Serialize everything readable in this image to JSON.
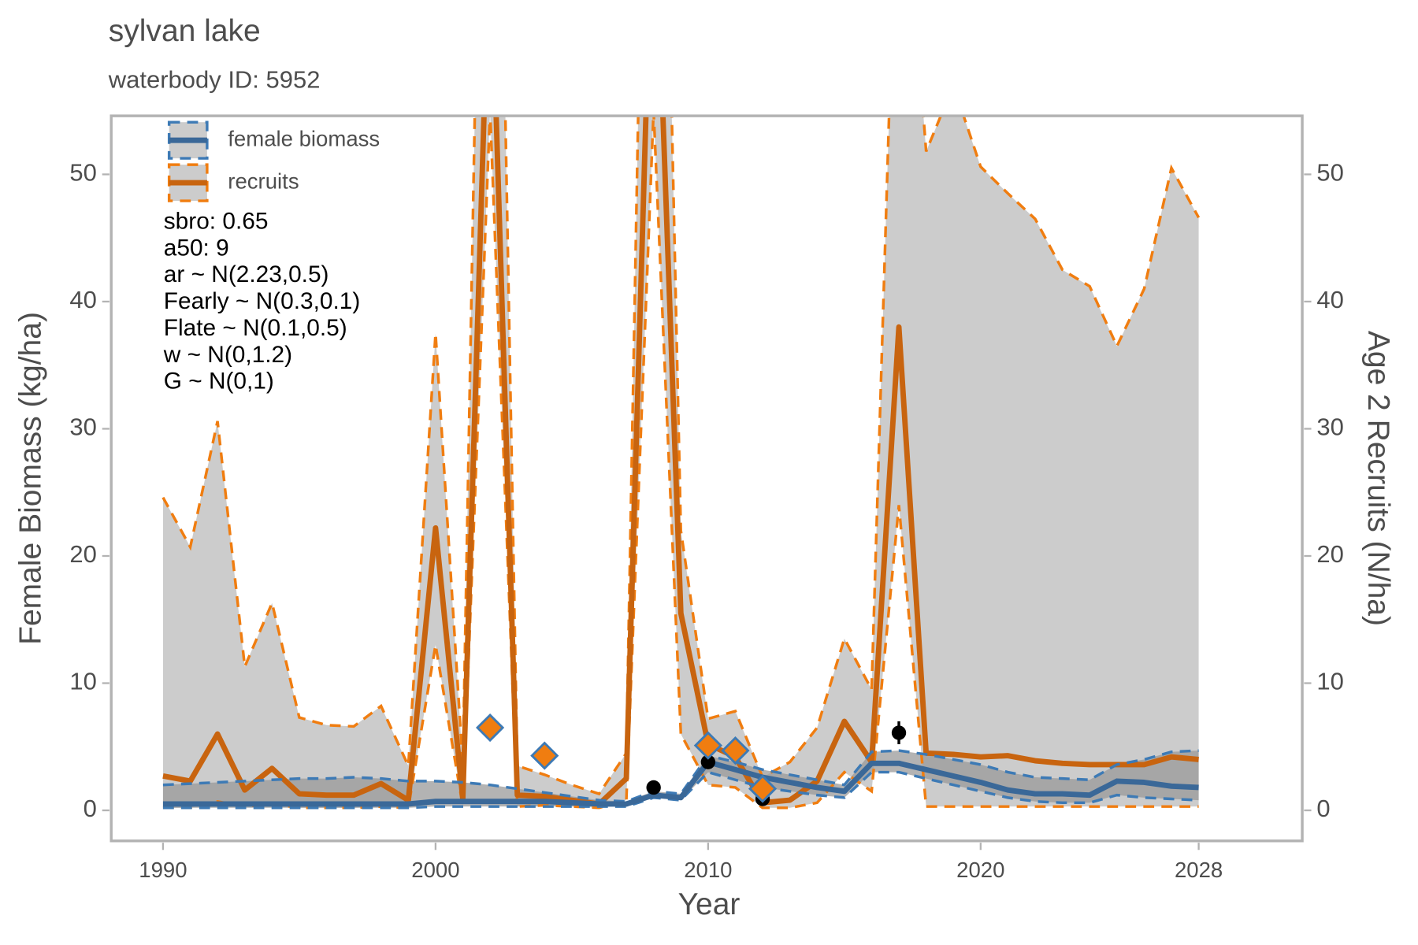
{
  "chart_data": {
    "type": "line",
    "title": "sylvan lake",
    "subtitle": "waterbody ID: 5952",
    "xlabel": "Year",
    "ylabel": "Female Biomass (kg/ha)",
    "y2label": "Age 2 Recruits (N/ha)",
    "xlim": [
      1988.1,
      2031.8
    ],
    "xticks": [
      1990,
      2000,
      2010,
      2020,
      2028
    ],
    "ylim": [
      -2.4,
      54.6
    ],
    "yticks": [
      0,
      10,
      20,
      30,
      40,
      50
    ],
    "y2lim": [
      -2.4,
      54.6
    ],
    "y2ticks": [
      0,
      10,
      20,
      30,
      40,
      50
    ],
    "legend": "top-left",
    "annotations": [
      "sbro: 0.65",
      "a50: 9",
      "ar ~ N(2.23,0.5)",
      "Fearly ~ N(0.3,0.1)",
      "Flate ~ N(0.1,0.5)",
      "w ~ N(0,1.2)",
      "G ~ N(0,1)"
    ],
    "x": [
      1990,
      1991,
      1992,
      1993,
      1994,
      1995,
      1996,
      1997,
      1998,
      1999,
      2000,
      2001,
      2002,
      2003,
      2004,
      2005,
      2006,
      2007,
      2008,
      2009,
      2010,
      2011,
      2012,
      2013,
      2014,
      2015,
      2016,
      2017,
      2018,
      2019,
      2020,
      2021,
      2022,
      2023,
      2024,
      2025,
      2026,
      2027,
      2028
    ],
    "series": [
      {
        "name": "female biomass",
        "color": "#3a6898",
        "band_color": "#9a9a9a",
        "dash_color": "#3d7ab5",
        "axis": "y",
        "values": [
          0.5,
          0.5,
          0.5,
          0.5,
          0.5,
          0.5,
          0.5,
          0.5,
          0.5,
          0.5,
          0.7,
          0.7,
          0.7,
          0.7,
          0.7,
          0.6,
          0.5,
          0.5,
          1.2,
          1.0,
          3.8,
          3.2,
          2.6,
          2.2,
          1.8,
          1.5,
          3.7,
          3.7,
          3.2,
          2.7,
          2.2,
          1.6,
          1.3,
          1.3,
          1.2,
          2.3,
          2.2,
          1.9,
          1.8
        ],
        "lower": [
          0.2,
          0.2,
          0.2,
          0.2,
          0.2,
          0.2,
          0.2,
          0.2,
          0.2,
          0.2,
          0.3,
          0.3,
          0.3,
          0.3,
          0.3,
          0.3,
          0.3,
          0.3,
          1.0,
          0.8,
          3.0,
          2.4,
          1.8,
          1.5,
          1.2,
          1.0,
          3.0,
          3.0,
          2.5,
          2.0,
          1.5,
          1.0,
          0.7,
          0.6,
          0.6,
          1.2,
          1.0,
          0.9,
          0.8
        ],
        "upper": [
          2.0,
          2.1,
          2.2,
          2.3,
          2.4,
          2.5,
          2.5,
          2.6,
          2.5,
          2.3,
          2.3,
          2.2,
          2.0,
          1.7,
          1.4,
          1.1,
          0.8,
          0.7,
          1.5,
          1.3,
          4.3,
          3.8,
          3.2,
          2.8,
          2.4,
          2.0,
          4.6,
          4.7,
          4.4,
          4.0,
          3.6,
          3.0,
          2.6,
          2.5,
          2.4,
          3.6,
          4.0,
          4.6,
          4.7
        ]
      },
      {
        "name": "recruits",
        "color": "#c8640f",
        "band_color": "#cccccc",
        "dash_color": "#f07d10",
        "axis": "y2",
        "values": [
          2.7,
          2.3,
          6.0,
          1.6,
          3.3,
          1.3,
          1.2,
          1.2,
          2.1,
          0.8,
          22.2,
          0.9,
          70,
          1.2,
          1.1,
          0.8,
          0.5,
          2.5,
          75,
          15.5,
          5.2,
          4.2,
          0.6,
          0.8,
          2.3,
          7.0,
          3.8,
          38.0,
          4.5,
          4.4,
          4.2,
          4.3,
          3.9,
          3.7,
          3.6,
          3.6,
          3.6,
          4.2,
          4.0
        ],
        "lower": [
          0.2,
          0.2,
          0.7,
          0.3,
          0.5,
          0.2,
          0.2,
          0.2,
          0.3,
          0.2,
          13,
          0.3,
          55,
          0.3,
          0.4,
          0.3,
          0.2,
          0.8,
          55,
          6,
          2,
          1.8,
          0.2,
          0.2,
          0.6,
          3,
          1.5,
          24,
          0.3,
          0.3,
          0.3,
          0.3,
          0.3,
          0.3,
          0.3,
          0.3,
          0.3,
          0.3,
          0.3
        ],
        "upper": [
          24.6,
          20.7,
          30.6,
          11.3,
          16.3,
          7.3,
          6.7,
          6.6,
          8.2,
          3.5,
          37.5,
          3.5,
          120,
          3.5,
          2.8,
          2.0,
          1.3,
          4.5,
          120,
          22,
          7.2,
          7.8,
          2.6,
          3.8,
          6.5,
          13.5,
          9.5,
          80,
          51.8,
          57,
          50.6,
          48.5,
          46.5,
          42.5,
          41.2,
          36.5,
          41,
          50.5,
          46.6
        ]
      }
    ],
    "biomass_obs": {
      "color": "#000000",
      "x": [
        2008,
        2010,
        2012,
        2017
      ],
      "values": [
        1.8,
        3.8,
        0.9,
        6.1
      ],
      "errors": [
        0.2,
        0.5,
        0.2,
        0.9
      ]
    },
    "recruit_obs": {
      "color": "#f07d10",
      "edge": "#3d7ab5",
      "axis": "y2",
      "x": [
        2002,
        2004,
        2010,
        2011,
        2012
      ],
      "values": [
        6.5,
        4.3,
        5.1,
        4.7,
        1.7
      ]
    }
  }
}
